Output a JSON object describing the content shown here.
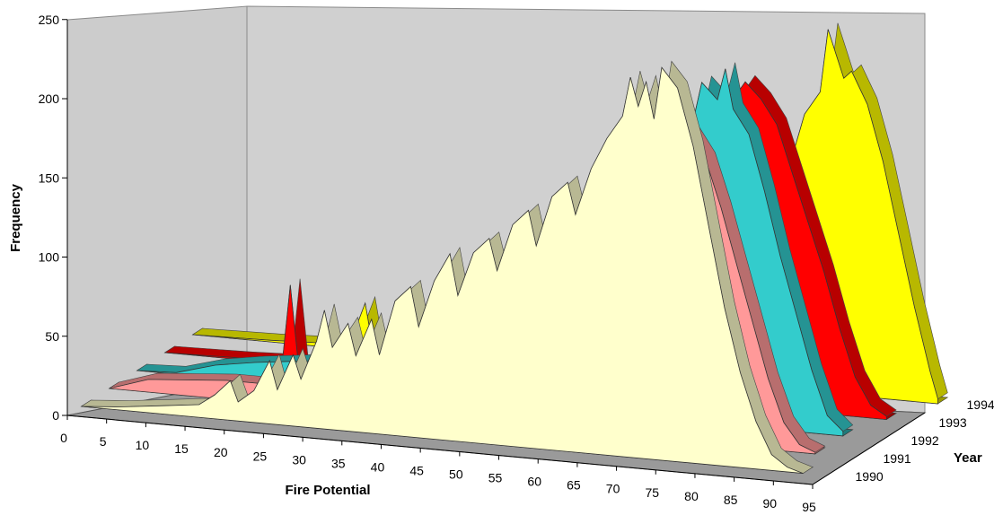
{
  "chart_data": {
    "type": "area",
    "subtype": "3d-area",
    "xlabel": "Fire Potential",
    "ylabel": "Frequency",
    "zlabel": "Year",
    "ylim": [
      0,
      250
    ],
    "yticks": [
      0,
      50,
      100,
      150,
      200,
      250
    ],
    "xticks": [
      0,
      5,
      10,
      15,
      20,
      25,
      30,
      35,
      40,
      45,
      50,
      55,
      60,
      65,
      70,
      75,
      80,
      85,
      90,
      95
    ],
    "grid": false,
    "series": [
      {
        "name": "1994",
        "color": "#ffff00",
        "points": [
          [
            0,
            0
          ],
          [
            10,
            1
          ],
          [
            20,
            3
          ],
          [
            22,
            30
          ],
          [
            23,
            2
          ],
          [
            30,
            2
          ],
          [
            40,
            3
          ],
          [
            50,
            5
          ],
          [
            55,
            8
          ],
          [
            60,
            15
          ],
          [
            65,
            30
          ],
          [
            70,
            60
          ],
          [
            72,
            80
          ],
          [
            74,
            110
          ],
          [
            76,
            140
          ],
          [
            78,
            175
          ],
          [
            80,
            190
          ],
          [
            81,
            230
          ],
          [
            82,
            215
          ],
          [
            83,
            200
          ],
          [
            84,
            205
          ],
          [
            86,
            185
          ],
          [
            88,
            150
          ],
          [
            90,
            105
          ],
          [
            92,
            60
          ],
          [
            94,
            20
          ],
          [
            95,
            3
          ]
        ]
      },
      {
        "name": "1993",
        "color": "#ff0000",
        "points": [
          [
            0,
            0
          ],
          [
            10,
            1
          ],
          [
            15,
            2
          ],
          [
            16,
            50
          ],
          [
            17,
            2
          ],
          [
            20,
            5
          ],
          [
            25,
            10
          ],
          [
            30,
            12
          ],
          [
            35,
            10
          ],
          [
            40,
            15
          ],
          [
            45,
            20
          ],
          [
            50,
            35
          ],
          [
            55,
            55
          ],
          [
            60,
            80
          ],
          [
            65,
            110
          ],
          [
            68,
            140
          ],
          [
            70,
            160
          ],
          [
            72,
            190
          ],
          [
            74,
            205
          ],
          [
            76,
            195
          ],
          [
            78,
            180
          ],
          [
            80,
            150
          ],
          [
            82,
            120
          ],
          [
            84,
            90
          ],
          [
            86,
            55
          ],
          [
            88,
            25
          ],
          [
            90,
            8
          ],
          [
            92,
            2
          ]
        ]
      },
      {
        "name": "1992",
        "color": "#33cccc",
        "points": [
          [
            0,
            0
          ],
          [
            5,
            1
          ],
          [
            10,
            8
          ],
          [
            15,
            12
          ],
          [
            20,
            15
          ],
          [
            25,
            18
          ],
          [
            30,
            22
          ],
          [
            35,
            28
          ],
          [
            40,
            35
          ],
          [
            45,
            45
          ],
          [
            50,
            55
          ],
          [
            55,
            70
          ],
          [
            60,
            90
          ],
          [
            65,
            120
          ],
          [
            68,
            150
          ],
          [
            70,
            170
          ],
          [
            72,
            215
          ],
          [
            74,
            205
          ],
          [
            75,
            225
          ],
          [
            76,
            200
          ],
          [
            78,
            185
          ],
          [
            80,
            150
          ],
          [
            82,
            110
          ],
          [
            84,
            75
          ],
          [
            86,
            40
          ],
          [
            88,
            12
          ],
          [
            90,
            3
          ]
        ]
      },
      {
        "name": "1991",
        "color": "#ff9999",
        "points": [
          [
            0,
            0
          ],
          [
            5,
            8
          ],
          [
            10,
            10
          ],
          [
            15,
            12
          ],
          [
            20,
            12
          ],
          [
            25,
            15
          ],
          [
            30,
            20
          ],
          [
            35,
            25
          ],
          [
            40,
            35
          ],
          [
            45,
            45
          ],
          [
            50,
            60
          ],
          [
            55,
            80
          ],
          [
            60,
            100
          ],
          [
            62,
            125
          ],
          [
            64,
            135
          ],
          [
            66,
            150
          ],
          [
            68,
            170
          ],
          [
            70,
            190
          ],
          [
            72,
            200
          ],
          [
            74,
            195
          ],
          [
            76,
            180
          ],
          [
            78,
            150
          ],
          [
            80,
            115
          ],
          [
            82,
            80
          ],
          [
            84,
            45
          ],
          [
            86,
            18
          ],
          [
            88,
            5
          ],
          [
            90,
            1
          ]
        ]
      },
      {
        "name": "1990",
        "color": "#ffffcc",
        "points": [
          [
            0,
            0
          ],
          [
            5,
            2
          ],
          [
            10,
            5
          ],
          [
            15,
            8
          ],
          [
            17,
            15
          ],
          [
            19,
            25
          ],
          [
            20,
            12
          ],
          [
            22,
            20
          ],
          [
            24,
            40
          ],
          [
            25,
            22
          ],
          [
            27,
            45
          ],
          [
            28,
            30
          ],
          [
            30,
            55
          ],
          [
            31,
            75
          ],
          [
            32,
            52
          ],
          [
            34,
            68
          ],
          [
            35,
            48
          ],
          [
            37,
            72
          ],
          [
            38,
            50
          ],
          [
            40,
            85
          ],
          [
            42,
            95
          ],
          [
            43,
            70
          ],
          [
            45,
            100
          ],
          [
            47,
            118
          ],
          [
            48,
            92
          ],
          [
            50,
            120
          ],
          [
            52,
            130
          ],
          [
            53,
            110
          ],
          [
            55,
            140
          ],
          [
            57,
            150
          ],
          [
            58,
            128
          ],
          [
            60,
            160
          ],
          [
            62,
            170
          ],
          [
            63,
            150
          ],
          [
            65,
            180
          ],
          [
            67,
            200
          ],
          [
            69,
            215
          ],
          [
            70,
            240
          ],
          [
            71,
            222
          ],
          [
            72,
            238
          ],
          [
            73,
            215
          ],
          [
            74,
            248
          ],
          [
            76,
            236
          ],
          [
            78,
            200
          ],
          [
            80,
            150
          ],
          [
            82,
            100
          ],
          [
            84,
            60
          ],
          [
            86,
            30
          ],
          [
            88,
            10
          ],
          [
            90,
            3
          ],
          [
            92,
            0
          ]
        ]
      }
    ]
  }
}
